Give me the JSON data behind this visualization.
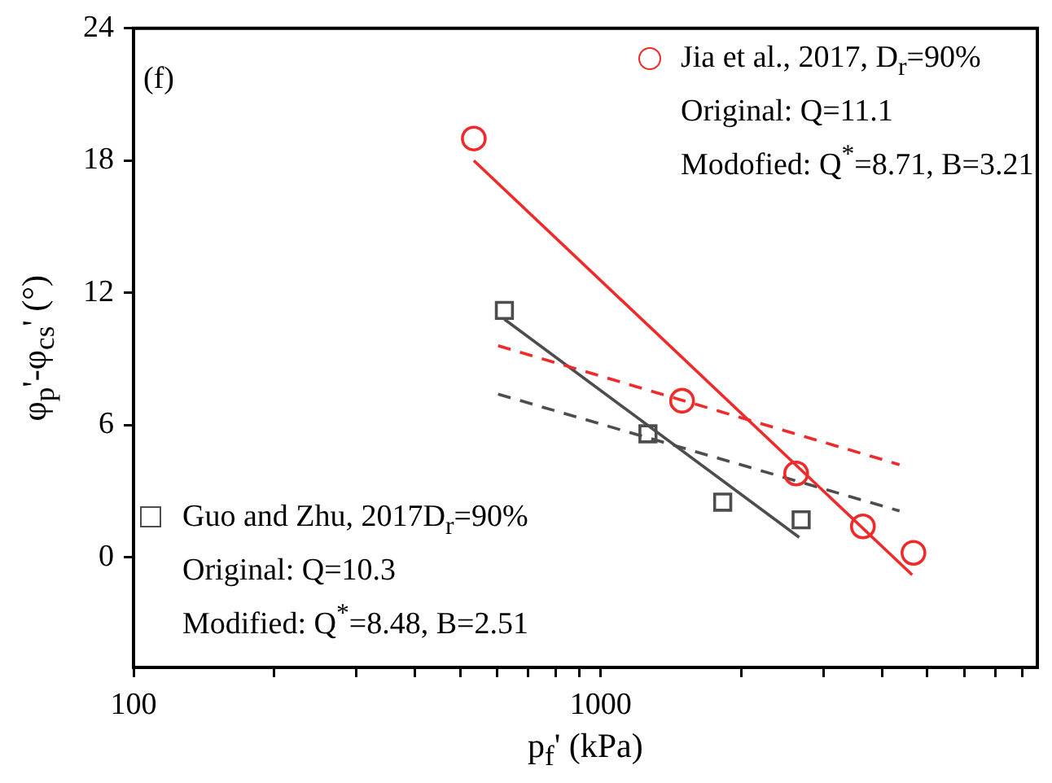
{
  "chart_data": {
    "type": "scatter",
    "xlabel": "p$_{f}$' (kPa)",
    "ylabel": "φ$_{p}$'-φ$_{cs}$' (°)",
    "log": "x",
    "xlim": [
      100,
      8600
    ],
    "ylim": [
      -5,
      24
    ],
    "xticks": [
      100,
      {
        "value": 200,
        "label": null
      },
      {
        "value": 300,
        "label": null
      },
      {
        "value": 400,
        "label": null
      },
      {
        "value": 500,
        "label": null
      },
      {
        "value": 600,
        "label": null
      },
      {
        "value": 700,
        "label": null
      },
      {
        "value": 800,
        "label": null
      },
      {
        "value": 900,
        "label": null
      },
      1000,
      {
        "value": 2000,
        "label": null
      },
      {
        "value": 3000,
        "label": null
      },
      {
        "value": 4000,
        "label": null
      },
      {
        "value": 5000,
        "label": null
      },
      {
        "value": 6000,
        "label": null
      },
      {
        "value": 7000,
        "label": null
      },
      {
        "value": 8000,
        "label": null
      }
    ],
    "yticks": [
      0,
      6,
      12,
      18,
      24
    ],
    "grid": false,
    "legend": "top right",
    "series": [
      {
        "name": "Jia et al., 2017, D$_{r}$=90%",
        "color": "#ee2a2a",
        "marker": "circle",
        "x": [
          535,
          1493,
          2620,
          3640,
          4670
        ],
        "values": [
          19.0,
          7.1,
          3.8,
          1.4,
          0.2
        ]
      },
      {
        "name": "Guo and Zhu, 2017D$_{r}$=90%",
        "color": "#4d4d4d",
        "marker": "square",
        "x": [
          622,
          1262,
          1824,
          2685
        ],
        "values": [
          11.2,
          5.6,
          2.5,
          1.7
        ]
      },
      {
        "type": "line",
        "color": "#ee2a2a",
        "line_style": "solid",
        "marker": "none",
        "x": [
          535,
          4640
        ],
        "values": [
          18.0,
          -0.8
        ]
      },
      {
        "type": "line",
        "color": "#ee2a2a",
        "line_style": "dashed",
        "marker": "none",
        "x": [
          603,
          4360
        ],
        "values": [
          9.6,
          4.2
        ]
      },
      {
        "type": "line",
        "color": "#4d4d4d",
        "line_style": "solid",
        "marker": "none",
        "x": [
          622,
          2660
        ],
        "values": [
          10.8,
          0.9
        ]
      },
      {
        "type": "line",
        "color": "#4d4d4d",
        "line_style": "dashed",
        "marker": "none",
        "x": [
          603,
          4360
        ],
        "values": [
          7.4,
          2.1
        ]
      }
    ],
    "annotations": [
      "(f)",
      "Original: Q=11.1",
      "Modofied: Q$^{*}$=8.71, B=3.21",
      "Original: Q=10.3",
      "Modified: Q$^{*}$=8.48, B=2.51"
    ]
  }
}
